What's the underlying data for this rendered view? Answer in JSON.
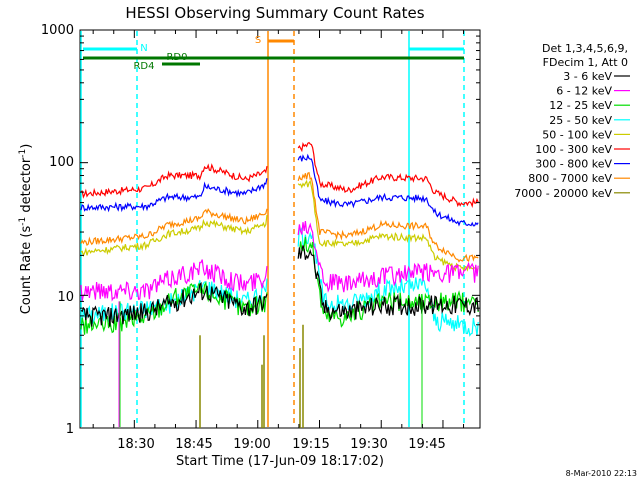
{
  "chart_data": {
    "type": "line",
    "title": "HESSI Observing Summary Count Rates",
    "xlabel": "Start Time (17-Jun-09 18:17:02)",
    "ylabel_main": "Count Rate (s",
    "ylabel_sup1": "-1",
    "ylabel_mid": " detector",
    "ylabel_sup2": "-1",
    "ylabel_end": ")",
    "yscale": "log",
    "ylim": [
      1,
      1000
    ],
    "xlim_minutes": [
      18.28,
      19.9
    ],
    "x_ticks": [
      "18:30",
      "18:45",
      "19:00",
      "19:15",
      "19:30",
      "19:45"
    ],
    "y_ticks": [
      "1",
      "10",
      "100",
      "1000"
    ],
    "legend_header": [
      "Det 1,3,4,5,6,9,",
      "FDecim 1, Att 0"
    ],
    "legend": [
      {
        "label": "3 - 6 keV",
        "color": "#000000"
      },
      {
        "label": "6 - 12 keV",
        "color": "#ff00ff"
      },
      {
        "label": "12 - 25 keV",
        "color": "#00dd00"
      },
      {
        "label": "25 - 50 keV",
        "color": "#00ffff"
      },
      {
        "label": "50 - 100 keV",
        "color": "#cccc00"
      },
      {
        "label": "100 - 300 keV",
        "color": "#ff0000"
      },
      {
        "label": "300 - 800 keV",
        "color": "#0000ff"
      },
      {
        "label": "800 - 7000 keV",
        "color": "#ff8800"
      },
      {
        "label": "7000 - 20000 keV",
        "color": "#888800"
      }
    ],
    "segments": [
      {
        "start": "18:22",
        "end": "19:10",
        "level_3_6": 7.5,
        "level_6_12": 13,
        "level_12_25": 8,
        "level_25_50": 12
      },
      {
        "start": "19:13",
        "end": "19:55",
        "level_3_6": 8,
        "level_6_12": 13,
        "level_12_25": 8,
        "level_25_50": 13
      }
    ],
    "series_levels": [
      {
        "name": "100 - 300 keV",
        "points": [
          [
            "18:17",
            58
          ],
          [
            "18:33",
            64
          ],
          [
            "18:38",
            80
          ],
          [
            "18:46",
            80
          ],
          [
            "18:47",
            95
          ],
          [
            "18:57",
            75
          ],
          [
            "19:02",
            85
          ],
          [
            "19:03",
            105
          ],
          [
            "19:13",
            140
          ],
          [
            "19:15",
            70
          ],
          [
            "19:22",
            62
          ],
          [
            "19:30",
            78
          ],
          [
            "19:41",
            76
          ],
          [
            "19:43",
            60
          ],
          [
            "19:49",
            50
          ]
        ]
      },
      {
        "name": "300 - 800 keV",
        "points": [
          [
            "18:17",
            46
          ],
          [
            "18:33",
            47
          ],
          [
            "18:38",
            55
          ],
          [
            "18:46",
            55
          ],
          [
            "18:47",
            66
          ],
          [
            "18:57",
            58
          ],
          [
            "19:02",
            70
          ],
          [
            "19:03",
            100
          ],
          [
            "19:13",
            110
          ],
          [
            "19:15",
            52
          ],
          [
            "19:22",
            48
          ],
          [
            "19:30",
            55
          ],
          [
            "19:41",
            54
          ],
          [
            "19:43",
            42
          ],
          [
            "19:49",
            35
          ]
        ]
      },
      {
        "name": "800 - 7000 keV",
        "points": [
          [
            "18:17",
            25
          ],
          [
            "18:33",
            28
          ],
          [
            "18:38",
            34
          ],
          [
            "18:46",
            38
          ],
          [
            "18:47",
            43
          ],
          [
            "18:57",
            36
          ],
          [
            "19:02",
            42
          ],
          [
            "19:03",
            70
          ],
          [
            "19:13",
            80
          ],
          [
            "19:15",
            30
          ],
          [
            "19:22",
            28
          ],
          [
            "19:30",
            34
          ],
          [
            "19:41",
            33
          ],
          [
            "19:43",
            24
          ],
          [
            "19:49",
            19
          ]
        ]
      },
      {
        "name": "50 - 100 keV",
        "points": [
          [
            "18:17",
            21
          ],
          [
            "18:33",
            24
          ],
          [
            "18:38",
            29
          ],
          [
            "18:46",
            32
          ],
          [
            "18:47",
            36
          ],
          [
            "18:57",
            30
          ],
          [
            "19:02",
            35
          ],
          [
            "19:03",
            60
          ],
          [
            "19:13",
            70
          ],
          [
            "19:15",
            25
          ],
          [
            "19:22",
            24
          ],
          [
            "19:30",
            28
          ],
          [
            "19:41",
            27
          ],
          [
            "19:43",
            19
          ],
          [
            "19:49",
            16
          ]
        ]
      }
    ],
    "annotations": {
      "N": {
        "label": "N",
        "color": "#00ffff"
      },
      "RD0": {
        "label": "RD0",
        "color": "#007700"
      },
      "RD4": {
        "label": "RD4",
        "color": "#007700"
      },
      "S": {
        "label": "S",
        "color": "#ff8800"
      }
    }
  },
  "footer": {
    "timestamp": "8-Mar-2010 22:13"
  }
}
